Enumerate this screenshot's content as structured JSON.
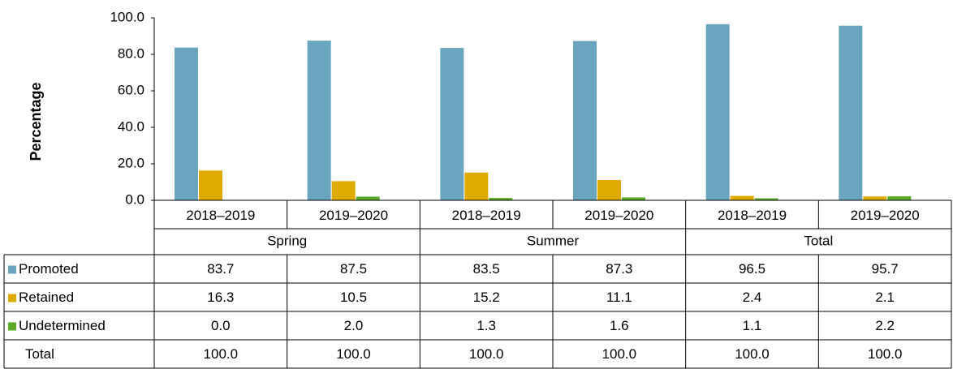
{
  "chart_data": {
    "type": "bar",
    "y_label": "Percentage",
    "categories": [
      "2018–2019",
      "2019–2020",
      "2018–2019",
      "2019–2020",
      "2018–2019",
      "2019–2020"
    ],
    "groups": [
      "Spring",
      "Summer",
      "Total"
    ],
    "series": [
      {
        "name": "Promoted",
        "color": "#6aa5bf",
        "values": [
          83.7,
          87.5,
          83.5,
          87.3,
          96.5,
          95.7
        ]
      },
      {
        "name": "Retained",
        "color": "#e0ab00",
        "values": [
          16.3,
          10.5,
          15.2,
          11.1,
          2.4,
          2.1
        ]
      },
      {
        "name": "Undetermined",
        "color": "#5aab2a",
        "values": [
          0,
          2,
          1.3,
          1.6,
          1.1,
          2.2
        ],
        "value_labels": [
          "0.0",
          "2.0",
          "1.3",
          "1.6",
          "1.1",
          "2.2"
        ]
      }
    ],
    "total_row": {
      "name": "Total",
      "labels": [
        "100.0",
        "100.0",
        "100.0",
        "100.0",
        "100.0",
        "100.0"
      ]
    },
    "ylim": [
      0,
      100
    ],
    "yticks": [
      {
        "value": 0,
        "label": "0.0"
      },
      {
        "value": 20,
        "label": "20.0"
      },
      {
        "value": 40,
        "label": "40.0"
      },
      {
        "value": 60,
        "label": "60.0"
      },
      {
        "value": 80,
        "label": "80.0"
      },
      {
        "value": 100,
        "label": "100.0"
      }
    ]
  }
}
